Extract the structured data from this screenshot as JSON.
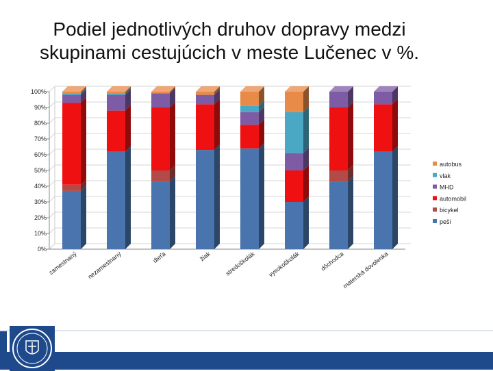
{
  "title_line1": "Podiel jednotlivých druhov dopravy medzi",
  "title_line2": "skupinami cestujúcich v meste Lučenec v %.",
  "colors": {
    "pesi": "#4a74ad",
    "bicykel": "#b24a48",
    "automobil": "#ef1111",
    "MHD": "#7e5ca5",
    "vlak": "#4aa8c4",
    "autobus": "#e88a48"
  },
  "chart_data": {
    "type": "bar",
    "stacked": true,
    "three_d": true,
    "categories": [
      "zamestnaný",
      "nezamestnaný",
      "dieťa",
      "žiak",
      "stredoškolák",
      "vysokoškolák",
      "dôchodca",
      "materská dovolenka"
    ],
    "ylim": [
      0,
      100
    ],
    "yticks": [
      "0%",
      "10%",
      "20%",
      "30%",
      "40%",
      "50%",
      "60%",
      "70%",
      "80%",
      "90%",
      "100%"
    ],
    "legend_position": "right",
    "series": [
      {
        "name": "peši",
        "key": "pesi",
        "values": [
          37,
          62,
          43,
          63,
          64,
          30,
          43,
          62
        ]
      },
      {
        "name": "bicykel",
        "key": "bicykel",
        "values": [
          4,
          0,
          7,
          0,
          0,
          0,
          7,
          0
        ]
      },
      {
        "name": "automobil",
        "key": "automobil",
        "values": [
          52,
          26,
          40,
          29,
          15,
          20,
          40,
          30
        ]
      },
      {
        "name": "MHD",
        "key": "MHD",
        "values": [
          5,
          10,
          9,
          6,
          8,
          11,
          10,
          8
        ]
      },
      {
        "name": "vlak",
        "key": "vlak",
        "values": [
          1,
          1,
          0,
          0,
          4,
          26,
          0,
          0
        ]
      },
      {
        "name": "autobus",
        "key": "autobus",
        "values": [
          1,
          1,
          1,
          2,
          9,
          13,
          0,
          0
        ]
      }
    ]
  }
}
